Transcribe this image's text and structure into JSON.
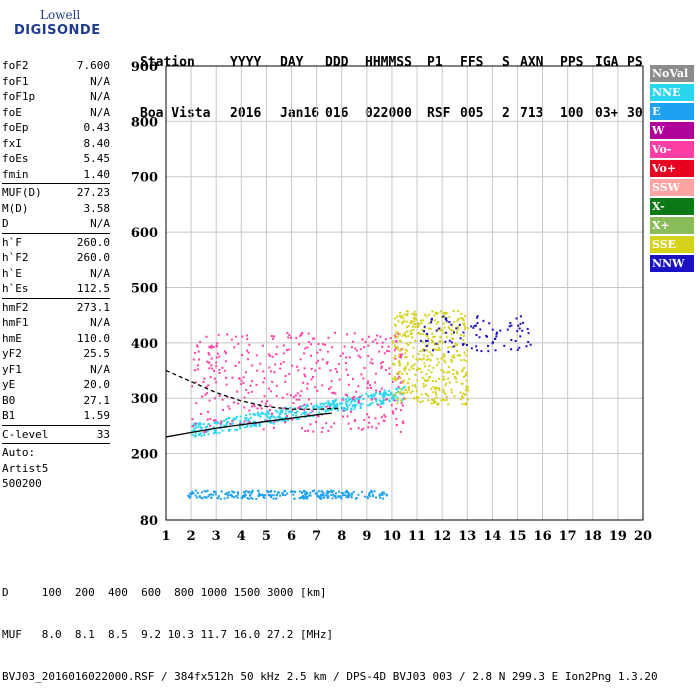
{
  "logo": {
    "line1": "Lowell",
    "line2": "DIGISONDE"
  },
  "header": {
    "row1": [
      "Station",
      "YYYY",
      "DAY",
      "DDD",
      "HHMMSS",
      "P1",
      "FFS",
      "S",
      "AXN",
      "PPS",
      "IGA",
      "PS"
    ],
    "row2": [
      "Boa Vista",
      "2016",
      "Jan16",
      "016",
      "022000",
      "RSF",
      "005",
      "2",
      "713",
      "100",
      "03+",
      "30"
    ]
  },
  "params": [
    {
      "k": "foF2",
      "v": "7.600"
    },
    {
      "k": "foF1",
      "v": "N/A"
    },
    {
      "k": "foF1p",
      "v": "N/A"
    },
    {
      "k": "foE",
      "v": "N/A"
    },
    {
      "k": "foEp",
      "v": "0.43"
    },
    {
      "k": "fxI",
      "v": "8.40"
    },
    {
      "k": "foEs",
      "v": "5.45"
    },
    {
      "k": "fmin",
      "v": "1.40"
    },
    {
      "sep": true
    },
    {
      "k": "MUF(D)",
      "v": "27.23"
    },
    {
      "k": "M(D)",
      "v": "3.58"
    },
    {
      "k": "D",
      "v": "N/A"
    },
    {
      "sep": true
    },
    {
      "k": "h`F",
      "v": "260.0"
    },
    {
      "k": "h`F2",
      "v": "260.0"
    },
    {
      "k": "h`E",
      "v": "N/A"
    },
    {
      "k": "h`Es",
      "v": "112.5"
    },
    {
      "sep": true
    },
    {
      "k": "hmF2",
      "v": "273.1"
    },
    {
      "k": "hmF1",
      "v": "N/A"
    },
    {
      "k": "hmE",
      "v": "110.0"
    },
    {
      "k": "yF2",
      "v": "25.5"
    },
    {
      "k": "yF1",
      "v": "N/A"
    },
    {
      "k": "yE",
      "v": "20.0"
    },
    {
      "k": "B0",
      "v": "27.1"
    },
    {
      "k": "B1",
      "v": "1.59"
    },
    {
      "sep": true
    },
    {
      "k": "C-level",
      "v": "33"
    },
    {
      "sep": true
    },
    {
      "k": "Auto:",
      "v": ""
    },
    {
      "k": "Artist5",
      "v": ""
    },
    {
      "k": "500200",
      "v": ""
    }
  ],
  "legend": [
    {
      "label": "NoVal",
      "color": "#8c8c8c"
    },
    {
      "label": "NNE",
      "color": "#29d6ee"
    },
    {
      "label": "E",
      "color": "#1ea1f0"
    },
    {
      "label": "W",
      "color": "#b0009a"
    },
    {
      "label": "Vo-",
      "color": "#ff3ea5"
    },
    {
      "label": "Vo+",
      "color": "#e8001f"
    },
    {
      "label": "SSW",
      "color": "#ffa2a2"
    },
    {
      "label": "X-",
      "color": "#0b7a14"
    },
    {
      "label": "X+",
      "color": "#8abd5a"
    },
    {
      "label": "SSE",
      "color": "#d4d21a"
    },
    {
      "label": "NNW",
      "color": "#1a11c4"
    }
  ],
  "footer": {
    "line1": "D     100  200  400  600  800 1000 1500 3000 [km]",
    "line2": "MUF   8.0  8.1  8.5  9.2 10.3 11.7 16.0 27.2 [MHz]",
    "line3": "BVJ03_2016016022000.RSF / 384fx512h 50 kHz 2.5 km / DPS-4D BVJ03 003 / 2.8 N 299.3 E Ion2Png 1.3.20"
  },
  "chart_data": {
    "type": "scatter",
    "xlim": [
      1,
      20
    ],
    "ylim": [
      80,
      900
    ],
    "x_ticks": [
      1,
      2,
      3,
      4,
      5,
      6,
      7,
      8,
      9,
      10,
      11,
      12,
      13,
      14,
      15,
      16,
      17,
      18,
      19,
      20
    ],
    "y_ticks": [
      80,
      200,
      300,
      400,
      500,
      600,
      700,
      800,
      900
    ],
    "grid": true,
    "echo_clusters": [
      {
        "name": "E-layer echoes",
        "color": "#1ea1f0",
        "x": [
          1.8,
          9.8
        ],
        "y": [
          120,
          135
        ]
      },
      {
        "name": "F-layer trace",
        "color": "#29d6ee",
        "x": [
          2,
          10.5
        ],
        "y": [
          230,
          310
        ]
      },
      {
        "name": "F-layer spread",
        "color": "#ff3ea5",
        "x": [
          2,
          10.5
        ],
        "y": [
          240,
          420
        ]
      },
      {
        "name": "SSE spread",
        "color": "#d4d21a",
        "x": [
          10,
          13
        ],
        "y": [
          290,
          460
        ]
      },
      {
        "name": "NNW echoes",
        "color": "#1a11c4",
        "x": [
          11,
          15.5
        ],
        "y": [
          385,
          450
        ]
      }
    ],
    "profile_curve": {
      "x": [
        1,
        2,
        3,
        4,
        5,
        6,
        7,
        7.6
      ],
      "y": [
        230,
        238,
        246,
        252,
        258,
        264,
        270,
        273
      ]
    },
    "dashed_curve": {
      "x": [
        1,
        2,
        3,
        4,
        5,
        6,
        7,
        8
      ],
      "y": [
        350,
        330,
        310,
        295,
        285,
        280,
        280,
        282
      ]
    }
  }
}
